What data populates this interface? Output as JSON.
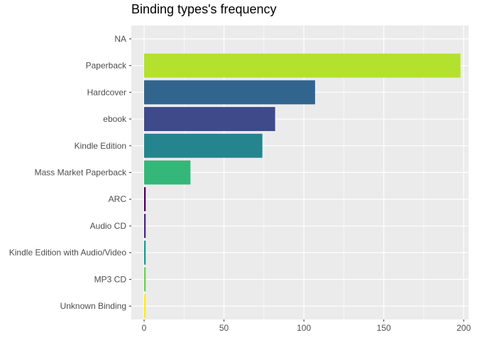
{
  "chart_data": {
    "type": "bar",
    "orientation": "horizontal",
    "title": "Binding types's frequency",
    "xlabel": "",
    "ylabel": "",
    "categories": [
      "NA",
      "Paperback",
      "Hardcover",
      "ebook",
      "Kindle Edition",
      "Mass Market Paperback",
      "ARC",
      "Audio CD",
      "Kindle Edition with Audio/Video",
      "MP3 CD",
      "Unknown Binding"
    ],
    "values": [
      0,
      198,
      107,
      82,
      74,
      29,
      1,
      1,
      1,
      1,
      1
    ],
    "colors": [
      "#808080",
      "#B4E12E",
      "#31658E",
      "#3F4A8A",
      "#25858E",
      "#35B779",
      "#440154",
      "#482677",
      "#1F978B",
      "#6CCE59",
      "#FDE725"
    ],
    "xlim": [
      -8,
      203
    ],
    "xticks": [
      0,
      50,
      100,
      150,
      200
    ],
    "grid": true,
    "legend": "none",
    "background": "#EBEBEB",
    "gridline_color": "#FFFFFF"
  }
}
